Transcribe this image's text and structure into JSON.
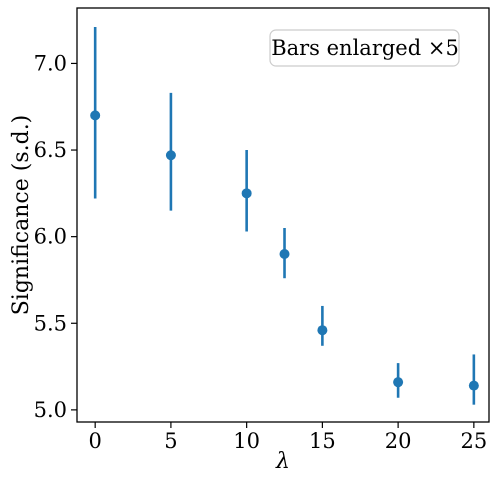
{
  "chart_data": {
    "type": "scatter",
    "x": [
      0,
      5,
      10,
      12.5,
      15,
      20,
      25
    ],
    "y": [
      6.7,
      6.47,
      6.25,
      5.9,
      5.46,
      5.16,
      5.14
    ],
    "yerr_low": [
      6.22,
      6.15,
      6.03,
      5.76,
      5.37,
      5.07,
      5.03
    ],
    "yerr_high": [
      7.21,
      6.83,
      6.5,
      6.05,
      5.6,
      5.27,
      5.32
    ],
    "xlabel": "λ",
    "ylabel": "Significance (s.d.)",
    "xlim": [
      -1.2,
      26
    ],
    "ylim": [
      4.93,
      7.32
    ],
    "xticks": [
      0,
      5,
      10,
      15,
      20,
      25
    ],
    "xtick_labels": [
      "0",
      "5",
      "10",
      "15",
      "20",
      "25"
    ],
    "yticks": [
      5.0,
      5.5,
      6.0,
      6.5,
      7.0
    ],
    "ytick_labels": [
      "5.0",
      "5.5",
      "6.0",
      "6.5",
      "7.0"
    ],
    "annotation": "Bars enlarged ×5",
    "color": "#1f77b4",
    "grid": false
  }
}
